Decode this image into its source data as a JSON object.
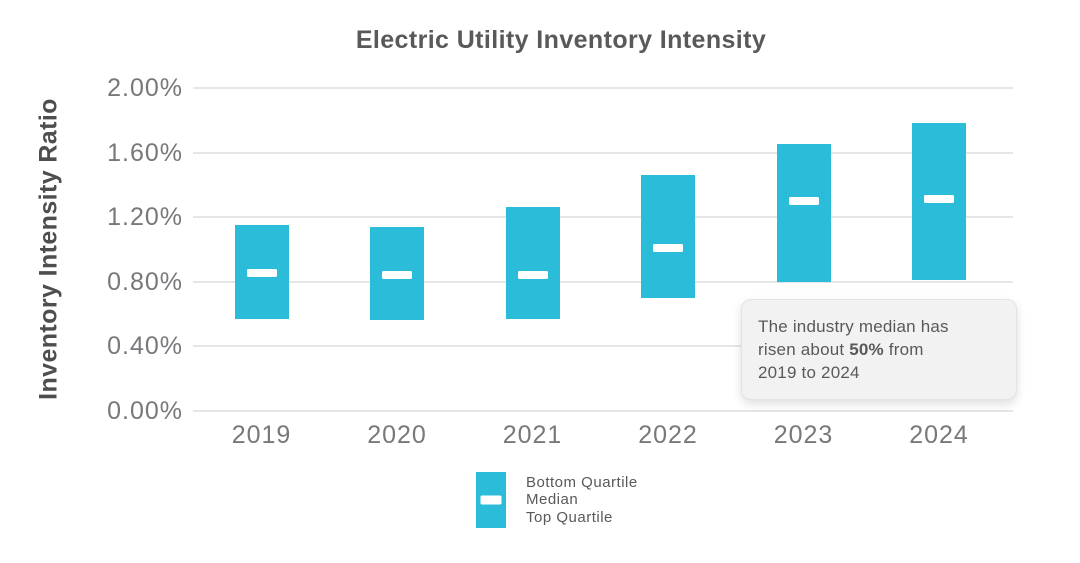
{
  "title": "Electric Utility Inventory Intensity",
  "y_axis_label": "Inventory Intensity Ratio",
  "annotation": {
    "line1": "The industry median has",
    "line2_prefix": "risen about ",
    "line2_bold": "50%",
    "line2_suffix": " from",
    "line3": "2019 to 2024"
  },
  "legend": {
    "line1": "Bottom Quartile",
    "line2": "Median",
    "line3": "Top Quartile"
  },
  "colors": {
    "bar": "#2BBCD9",
    "median_dash": "#FFFFFF",
    "gridline": "#E6E6E6",
    "title_text": "#58595B",
    "tick_text": "#77787B",
    "annotation_bg": "#F2F2F2",
    "annotation_text": "#58595B"
  },
  "chart_data": {
    "type": "bar",
    "subtype": "floating-range-bars-with-median",
    "title": "Electric Utility Inventory Intensity",
    "xlabel": "",
    "ylabel": "Inventory Intensity Ratio",
    "units": "percent",
    "categories": [
      "2019",
      "2020",
      "2021",
      "2022",
      "2023",
      "2024"
    ],
    "series": [
      {
        "name": "Bottom Quartile",
        "values": [
          0.57,
          0.56,
          0.57,
          0.7,
          0.8,
          0.81
        ]
      },
      {
        "name": "Median",
        "values": [
          0.85,
          0.84,
          0.84,
          1.01,
          1.3,
          1.31
        ]
      },
      {
        "name": "Top Quartile",
        "values": [
          1.15,
          1.14,
          1.26,
          1.46,
          1.65,
          1.78
        ]
      }
    ],
    "ylim": [
      0,
      2.0
    ],
    "y_ticks": [
      "0.00%",
      "0.40%",
      "0.80%",
      "1.20%",
      "1.60%",
      "2.00%"
    ],
    "y_tick_values": [
      0,
      0.4,
      0.8,
      1.2,
      1.6,
      2.0
    ],
    "grid": true,
    "legend_position": "bottom",
    "annotation_text": "The industry median has risen about 50% from 2019 to 2024"
  }
}
